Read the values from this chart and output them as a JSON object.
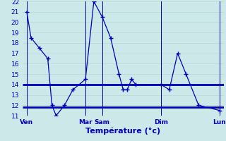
{
  "xlabel": "Température (°c)",
  "background_color": "#cce8e8",
  "line_color": "#0000bb",
  "ylim": [
    11,
    22
  ],
  "yticks": [
    11,
    12,
    13,
    14,
    15,
    16,
    17,
    18,
    19,
    20,
    21,
    22
  ],
  "xlim": [
    0,
    48
  ],
  "x_tick_positions": [
    1,
    15,
    19,
    33,
    47
  ],
  "x_tick_labels": [
    "Ven",
    "Mar",
    "Sam",
    "Dim",
    "Lun"
  ],
  "vline_positions": [
    1,
    15,
    19,
    33,
    47
  ],
  "temp_x": [
    1,
    2,
    4,
    6,
    7,
    8,
    10,
    12,
    15,
    17,
    19,
    21,
    23,
    24,
    25,
    26,
    27,
    33,
    35,
    37,
    39,
    42,
    47
  ],
  "temp_y": [
    21,
    18.5,
    17.5,
    16.5,
    12,
    11,
    12,
    13.5,
    14.5,
    22,
    20.5,
    18.5,
    15,
    13.5,
    13.5,
    14.5,
    14,
    14,
    13.5,
    17,
    15,
    12,
    11.5
  ],
  "ref_line1_y": 14.0,
  "ref_line2_y": 11.8,
  "grid_color": "#aad4d4",
  "xlabel_fontsize": 8,
  "tick_fontsize": 6.5,
  "figsize": [
    3.2,
    2.0
  ],
  "dpi": 100
}
